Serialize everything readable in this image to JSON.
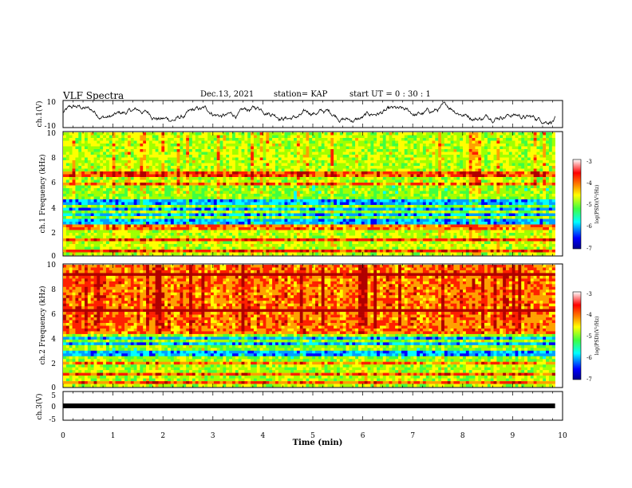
{
  "header": {
    "title": "VLF Spectra",
    "date": "Dec.13, 2021",
    "station": "station= KAP",
    "start": "start  UT =   0  : 30 : 1"
  },
  "chart_data": [
    {
      "type": "line",
      "panel": "ch1-waveform",
      "ylabel": "ch.1(V)",
      "ylim": [
        -10,
        10
      ],
      "yticks": [
        "10",
        "-10"
      ],
      "xlim": [
        0,
        10
      ],
      "data_end_min": 9.85,
      "color": "#000000"
    },
    {
      "type": "heatmap",
      "panel": "ch1-spectrogram",
      "ylabel": "ch.1 Frequency (kHz)",
      "ylim": [
        0,
        10
      ],
      "yticks": [
        "0",
        "2",
        "4",
        "6",
        "8",
        "10"
      ],
      "xlim": [
        0,
        10
      ],
      "bands_khz": [
        0.3,
        1.2,
        2.1,
        2.4,
        3.1,
        3.6,
        4.0,
        4.6,
        5.0,
        5.3,
        5.8,
        6.4,
        6.8
      ],
      "low_power_bands_khz": [
        [
          2.6,
          5.4
        ]
      ],
      "colorbar": {
        "label": "log(PSD)(V²/Hz)",
        "range": [
          -7,
          -3
        ],
        "ticks": [
          "-3",
          "-4",
          "-5",
          "-6",
          "-7"
        ]
      }
    },
    {
      "type": "heatmap",
      "panel": "ch2-spectrogram",
      "ylabel": "ch.2 Frequency (kHz)",
      "ylim": [
        0,
        10
      ],
      "yticks": [
        "0",
        "2",
        "4",
        "6",
        "8",
        "10"
      ],
      "xlim": [
        0,
        10
      ],
      "bands_khz": [
        0.3,
        1.0,
        1.9,
        2.3,
        3.0,
        3.4,
        3.8,
        4.4,
        6.2,
        9.3
      ],
      "low_power_bands_khz": [
        [
          2.2,
          4.0
        ]
      ],
      "colorbar": {
        "label": "log(PSD)(V²/Hz)",
        "range": [
          -7,
          -3
        ],
        "ticks": [
          "-3",
          "-4",
          "-5",
          "-6",
          "-7"
        ]
      }
    },
    {
      "type": "line",
      "panel": "ch3-waveform",
      "ylabel": "ch.3(V)",
      "ylim": [
        -5,
        5
      ],
      "yticks": [
        "5",
        "0",
        "-5"
      ],
      "xlim": [
        0,
        10
      ],
      "data_end_min": 9.85,
      "level": 0,
      "xlabel": "Time (min)",
      "xticks": [
        "0",
        "1",
        "2",
        "3",
        "4",
        "5",
        "6",
        "7",
        "8",
        "9",
        "10"
      ]
    }
  ],
  "colors": {
    "colormap": [
      "#00008c",
      "#0000ff",
      "#00a0ff",
      "#00ffff",
      "#40ff40",
      "#a0ff00",
      "#ffff00",
      "#ffa000",
      "#ff2000",
      "#b00000"
    ]
  }
}
